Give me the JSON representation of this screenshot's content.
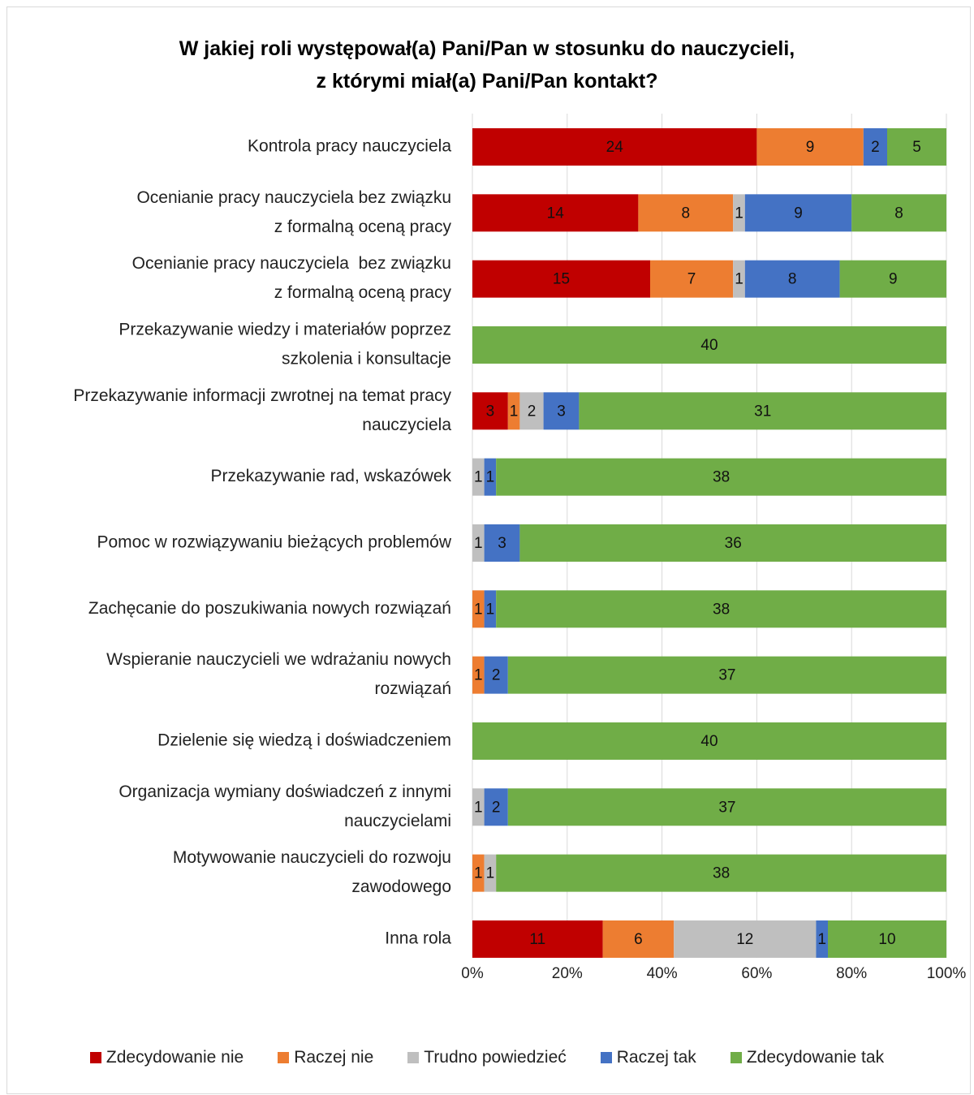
{
  "chart_data": {
    "type": "bar",
    "orientation": "horizontal",
    "stacked": "percent",
    "title_lines": [
      "W jakiej roli występował(a) Pani/Pan w stosunku do nauczycieli,",
      "z którymi miał(a) Pani/Pan kontakt?"
    ],
    "categories": [
      [
        "Kontrola pracy nauczyciela"
      ],
      [
        "Ocenianie pracy nauczyciela bez związku",
        "z formalną oceną pracy"
      ],
      [
        "Ocenianie pracy nauczyciela  bez związku",
        "z formalną oceną pracy"
      ],
      [
        "Przekazywanie wiedzy i materiałów poprzez",
        "szkolenia i konsultacje"
      ],
      [
        "Przekazywanie informacji zwrotnej na temat pracy",
        "nauczyciela"
      ],
      [
        "Przekazywanie rad, wskazówek"
      ],
      [
        "Pomoc w rozwiązywaniu bieżących problemów"
      ],
      [
        "Zachęcanie do poszukiwania nowych rozwiązań"
      ],
      [
        "Wspieranie nauczycieli we wdrażaniu nowych",
        "rozwiązań"
      ],
      [
        "Dzielenie się wiedzą i doświadczeniem"
      ],
      [
        "Organizacja wymiany doświadczeń z innymi",
        "nauczycielami"
      ],
      [
        "Motywowanie nauczycieli do rozwoju",
        "zawodowego"
      ],
      [
        "Inna rola"
      ]
    ],
    "series": [
      {
        "name": "Zdecydowanie nie",
        "color": "#c00000",
        "values": [
          24,
          14,
          15,
          0,
          3,
          0,
          0,
          0,
          0,
          0,
          0,
          0,
          11
        ]
      },
      {
        "name": "Raczej nie",
        "color": "#ed7d31",
        "values": [
          9,
          8,
          7,
          0,
          1,
          0,
          0,
          1,
          1,
          0,
          0,
          1,
          6
        ]
      },
      {
        "name": "Trudno powiedzieć",
        "color": "#bfbfbf",
        "values": [
          0,
          1,
          1,
          0,
          2,
          1,
          1,
          0,
          0,
          0,
          1,
          1,
          12
        ]
      },
      {
        "name": "Raczej tak",
        "color": "#4472c4",
        "values": [
          2,
          9,
          8,
          0,
          3,
          1,
          3,
          1,
          2,
          0,
          2,
          0,
          1
        ]
      },
      {
        "name": "Zdecydowanie tak",
        "color": "#70ad47",
        "values": [
          5,
          8,
          9,
          40,
          31,
          38,
          36,
          38,
          37,
          40,
          37,
          38,
          10
        ]
      }
    ],
    "x_ticks": [
      "0%",
      "20%",
      "40%",
      "60%",
      "80%",
      "100%"
    ],
    "xlim": [
      0,
      100
    ],
    "grid": "vertical",
    "legend_position": "bottom"
  }
}
